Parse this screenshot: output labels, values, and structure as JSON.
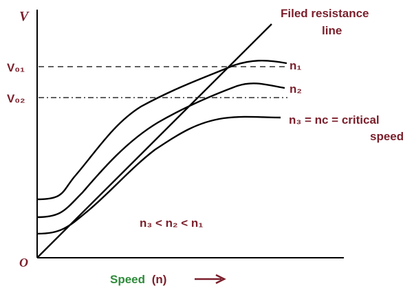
{
  "axes": {
    "y_symbol": "V",
    "origin": "O",
    "x_label_word": "Speed",
    "x_label_symbol": "(n)"
  },
  "levels": {
    "v01": "V₀₁",
    "v02": "V₀₂"
  },
  "curves": {
    "n1": "n₁",
    "n2": "n₂",
    "n3_line1": "n₃ = nᴄ = critical",
    "n3_line2": "speed"
  },
  "resistance_line": {
    "line1": "Filed resistance",
    "line2": "line"
  },
  "relation": "n₃ < n₂ < n₁",
  "colors": {
    "label": "#7a1f2b",
    "speed_word": "#2e8b3a",
    "curve": "#000000"
  }
}
